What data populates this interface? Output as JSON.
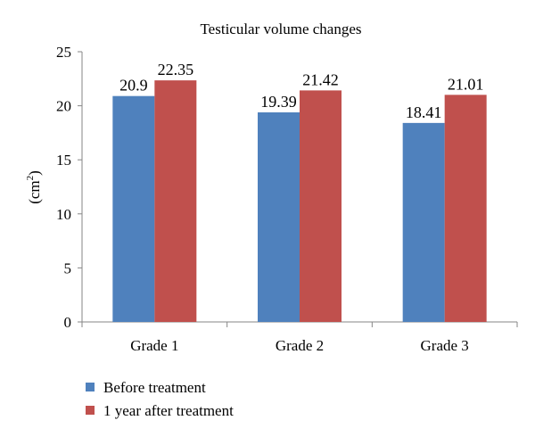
{
  "chart_data": {
    "type": "bar",
    "title": "Testicular volume changes",
    "ylabel": "(cm²)",
    "ylabel_base": "(cm",
    "ylabel_sup": "2",
    "ylabel_tail": ")",
    "categories": [
      "Grade 1",
      "Grade 2",
      "Grade 3"
    ],
    "series": [
      {
        "name": "Before treatment",
        "values": [
          20.9,
          19.39,
          18.41
        ],
        "color": "#4F81BD"
      },
      {
        "name": "1 year after treatment",
        "values": [
          22.35,
          21.42,
          21.01
        ],
        "color": "#C0504D"
      }
    ],
    "data_labels": [
      [
        "20.9",
        "19.39",
        "18.41"
      ],
      [
        "22.35",
        "21.42",
        "21.01"
      ]
    ],
    "ylim": [
      0,
      25
    ],
    "yticks": [
      0,
      5,
      10,
      15,
      20,
      25
    ],
    "grid": false,
    "legend_position": "bottom-left"
  }
}
